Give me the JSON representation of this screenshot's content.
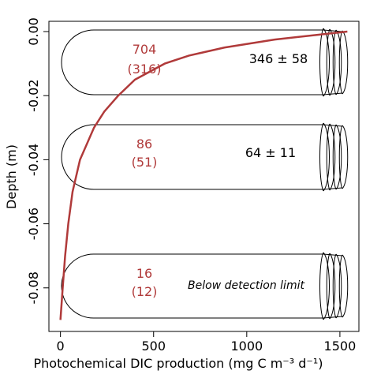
{
  "chart_data": {
    "type": "line",
    "xlabel": "Photochemical DIC production (mg C m⁻³ d⁻¹)",
    "ylabel": "Depth (m)",
    "x": [
      1540,
      1150,
      880,
      690,
      560,
      400,
      310,
      235,
      180,
      105,
      65,
      42,
      25,
      12,
      0
    ],
    "values": [
      0,
      -0.0025,
      -0.005,
      -0.0075,
      -0.01,
      -0.015,
      -0.02,
      -0.025,
      -0.03,
      -0.04,
      -0.05,
      -0.06,
      -0.07,
      -0.08,
      -0.09
    ],
    "color": "#b03a3a",
    "xlim": [
      -62,
      1602
    ],
    "xticks": [
      0,
      500,
      1000,
      1500
    ],
    "ylim": [
      -0.0936,
      0.0032
    ],
    "yticks": [
      {
        "value": 0,
        "label": "0.00"
      },
      {
        "value": -0.02,
        "label": "-0.02"
      },
      {
        "value": -0.04,
        "label": "-0.04"
      },
      {
        "value": -0.06,
        "label": "-0.06"
      },
      {
        "value": -0.08,
        "label": "-0.08"
      }
    ],
    "annotations": [
      "704",
      "(316)",
      "346 ± 58",
      "86",
      "(51)",
      "64 ± 11",
      "16",
      "(12)",
      "Below detection limit"
    ]
  }
}
